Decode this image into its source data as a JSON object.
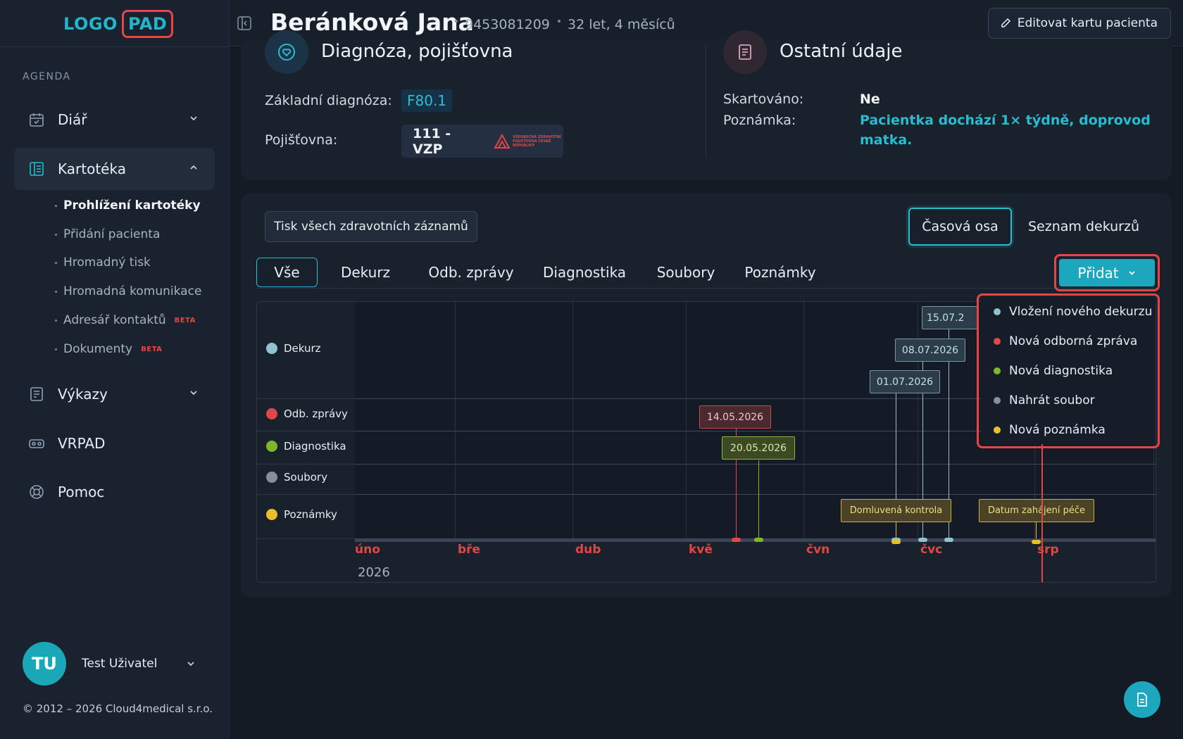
{
  "logo": {
    "part1": "LOGO",
    "part2": "PAD"
  },
  "sidebar": {
    "section_label": "AGENDA",
    "items": [
      {
        "label": "Diář",
        "icon": "calendar-check-icon"
      },
      {
        "label": "Kartotéka",
        "icon": "card-index-icon"
      },
      {
        "label": "Výkazy",
        "icon": "report-icon"
      },
      {
        "label": "VRPAD",
        "icon": "vr-headset-icon"
      },
      {
        "label": "Pomoc",
        "icon": "lifebuoy-icon"
      }
    ],
    "subitems": [
      {
        "label": "Prohlížení kartotéky",
        "badge": ""
      },
      {
        "label": "Přidání pacienta",
        "badge": ""
      },
      {
        "label": "Hromadný tisk",
        "badge": ""
      },
      {
        "label": "Hromadná komunikace",
        "badge": ""
      },
      {
        "label": "Adresář kontaktů",
        "badge": "BETA"
      },
      {
        "label": "Dokumenty",
        "badge": "BETA"
      }
    ],
    "user": {
      "initials": "TU",
      "name": "Test Uživatel"
    },
    "copyright": "© 2012 – 2026 Cloud4medical s.r.o."
  },
  "header": {
    "patient_name": "Beránková Jana",
    "patient_id": "9453081209",
    "patient_age": "32 let, 4 měsíců",
    "edit_button": "Editovat kartu pacienta"
  },
  "info": {
    "diag_title": "Diagnóza, pojišťovna",
    "diag_label": "Základní diagnóza:",
    "diag_value": "F80.1",
    "ins_label": "Pojišťovna:",
    "ins_value": "111 - VZP",
    "ins_logo_text": "VŠEOBECNÁ ZDRAVOTNÍ POJIŠŤOVNA ČESKÉ REPUBLIKY",
    "other_title": "Ostatní údaje",
    "shred_label": "Skartováno:",
    "shred_value": "Ne",
    "note_label": "Poznámka:",
    "note_value_1": "Pacientka dochází 1× týdně, doprovod",
    "note_value_2": "matka."
  },
  "records": {
    "print_button": "Tisk všech zdravotních záznamů",
    "view_timeline": "Časová osa",
    "view_list": "Seznam dekurzů",
    "tabs": [
      "Vše",
      "Dekurz",
      "Odb. zprávy",
      "Diagnostika",
      "Soubory",
      "Poznámky"
    ],
    "add_button": "Přidat"
  },
  "timeline": {
    "rows": [
      {
        "label": "Dekurz",
        "color": "#8fc3cf"
      },
      {
        "label": "Odb. zprávy",
        "color": "#e04848"
      },
      {
        "label": "Diagnostika",
        "color": "#7cb82a"
      },
      {
        "label": "Soubory",
        "color": "#8a8f97"
      },
      {
        "label": "Poznámky",
        "color": "#e8c12a"
      }
    ],
    "months": [
      "úno",
      "bře",
      "dub",
      "kvě",
      "čvn",
      "čvc",
      "srp"
    ],
    "year": "2026",
    "events": {
      "dekurz_1": "01.07.2026",
      "dekurz_2": "08.07.2026",
      "dekurz_3": "15.07.2",
      "zprava_1": "14.05.2026",
      "diag_1": "20.05.2026",
      "note_1": "Domluvená kontrola",
      "note_2": "Datum zahájení péče"
    }
  },
  "dropdown": {
    "items": [
      {
        "label": "Vložení nového dekurzu",
        "color": "#8fc3cf"
      },
      {
        "label": "Nová odborná zpráva",
        "color": "#e04848"
      },
      {
        "label": "Nová diagnostika",
        "color": "#7cb82a"
      },
      {
        "label": "Nahrát soubor",
        "color": "#8a8f97"
      },
      {
        "label": "Nová poznámka",
        "color": "#e8c12a"
      }
    ]
  }
}
